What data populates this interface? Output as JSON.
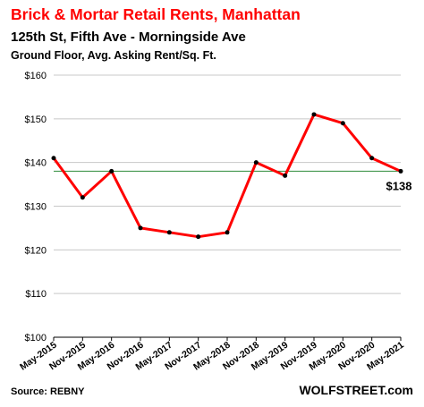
{
  "header": {
    "title": "Brick & Mortar Retail Rents, Manhattan",
    "subtitle": "125th St, Fifth Ave - Morningside Ave",
    "subtitle2": "Ground Floor, Avg. Asking Rent/Sq. Ft."
  },
  "footer": {
    "source": "Source: REBNY",
    "brand": "WOLFSTREET.com"
  },
  "colors": {
    "title": "#ff0000",
    "series": "#ff0000",
    "markers": "#000000",
    "reference_line": "#2e8b3a",
    "grid": "#c8c8c8"
  },
  "chart_data": {
    "type": "line",
    "categories": [
      "May-2015",
      "Nov-2015",
      "May-2016",
      "Nov-2016",
      "May-2017",
      "Nov-2017",
      "May-2018",
      "Nov-2018",
      "May-2019",
      "Nov-2019",
      "May-2020",
      "Nov-2020",
      "May-2021"
    ],
    "values": [
      141,
      132,
      138,
      125,
      124,
      123,
      124,
      140,
      137,
      151,
      149,
      141,
      138
    ],
    "ylim": [
      100,
      160
    ],
    "yticks": [
      100,
      110,
      120,
      130,
      140,
      150,
      160
    ],
    "ytick_labels": [
      "$100",
      "$110",
      "$120",
      "$130",
      "$140",
      "$150",
      "$160"
    ],
    "reference_value": 138,
    "end_label": "$138",
    "grid": "horizontal",
    "legend": "none"
  }
}
